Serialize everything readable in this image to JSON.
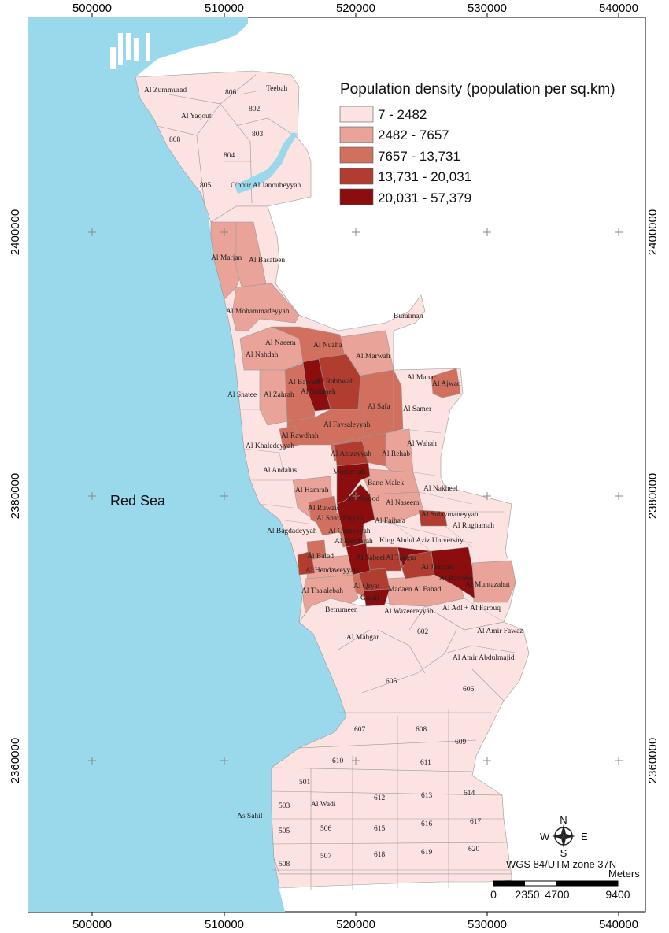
{
  "map": {
    "sea_label": "Red Sea",
    "x_ticks": [
      "500000",
      "510000",
      "520000",
      "530000",
      "540000"
    ],
    "y_ticks": [
      "2400000",
      "2380000",
      "2360000"
    ],
    "colors": {
      "sea": "#9ad8ec",
      "land": "#ffffff",
      "class1": "#fde2e2",
      "class2": "#e9a399",
      "class3": "#d1705f",
      "class4": "#b13d31",
      "class5": "#8b0d0e"
    },
    "legend": {
      "title": "Population density (population per sq.km)",
      "classes": [
        {
          "label": "7 - 2482",
          "color": "#fde2e2"
        },
        {
          "label": "2482 - 7657",
          "color": "#e9a399"
        },
        {
          "label": "7657 - 13,731",
          "color": "#d1705f"
        },
        {
          "label": "13,731 - 20,031",
          "color": "#b13d31"
        },
        {
          "label": "20,031 - 57,379",
          "color": "#8b0d0e"
        }
      ]
    },
    "neighborhoods": {
      "zummurad": "Al Zummurad",
      "n806": "806",
      "teebah": "Teebah",
      "n802": "802",
      "yaqout": "Al Yaqout",
      "n803": "803",
      "n808": "808",
      "n804": "804",
      "n805": "805",
      "obhur": "O'bhur Al Janoubeyyah",
      "marjan": "Al Marjan",
      "basateen": "Al Basateen",
      "mohammadeyyah": "Al Mohammadeyyah",
      "buraiman": "Buraiman",
      "naeem": "Al Naeem",
      "nuzha": "Al Nuzha",
      "nahdah": "Al Nahdah",
      "marwah": "Al Marwah",
      "manar": "Al Manar",
      "ajwad": "Al Ajwad",
      "bawadi": "Al Bawadi",
      "rabbwah": "Al Rabbwah",
      "salameh": "Al Salameh",
      "shatee": "Al Shatee",
      "zahrah": "Al Zahrah",
      "safa": "Al Safa",
      "samer": "Al Samer",
      "faysaleyyah": "Al Faysaleyyah",
      "rawdhah": "Al Rawdhah",
      "wahah": "Al Wahah",
      "khaledeyyah": "Al Khaledeyyah",
      "azizeyyah": "Al Azizeyyah",
      "rehab": "Al Rehab",
      "andalus": "Al Andalus",
      "mushrefah": "Mushrefah",
      "bane_malek": "Bane Malek",
      "nakheel": "Al Nakheel",
      "hamrah": "Al Hamrah",
      "worood": "Al Worood",
      "naseem": "Al Naseem",
      "ruwais": "Al Ruwais",
      "sulaymaneyyah": "Al Sulaymaneyyah",
      "sharafeyyah": "Al Sharafeyyah",
      "faihaa": "Al Faiha'a",
      "rughamah": "Al Rughamah",
      "bagdadeyyah": "Al Bagdadeyyah",
      "garbeyyah": "Al Garbeyyah",
      "kandarah": "Al Kandarah",
      "kau": "King Abdul Aziz University",
      "balad": "Al Balad",
      "sabeel": "Al Sabeel",
      "thagur": "Al Thagur",
      "hendaweyyah": "Al Hendaweyyah",
      "jamaah": "Al Jamaah",
      "rawabe": "Al Rawabe",
      "muntazahat": "Al Muntazahat",
      "thaalebah": "Al Tha'alebah",
      "qryat": "Al Qryat",
      "madaen": "Madaen Al Fahad",
      "gulail": "Gulail",
      "betrumeen": "Betrumeen",
      "wazeereyyah": "Al Wazeereyyah",
      "adl": "Al Adl + Al Farouq",
      "mahgar": "Al Mahgar",
      "n602": "602",
      "amir_fawaz": "Al Amir Fawaz",
      "amir_abdulmajid": "Al Amir Abdulmajid",
      "n605": "605",
      "n606": "606",
      "n607": "607",
      "n608": "608",
      "n609": "609",
      "n610": "610",
      "n611": "611",
      "n501": "501",
      "n614": "614",
      "n503": "503",
      "wadi": "Al Wadi",
      "n612": "612",
      "n613": "613",
      "as_sahil": "As Sahil",
      "n617": "617",
      "n505": "505",
      "n506": "506",
      "n615": "615",
      "n616": "616",
      "n508": "508",
      "n507": "507",
      "n618": "618",
      "n619": "619",
      "n620": "620"
    },
    "north_arrow": {
      "n": "N",
      "s": "S",
      "e": "E",
      "w": "W"
    },
    "projection": "WGS 84/UTM zone 37N",
    "scale_bar": {
      "unit": "Meters",
      "labels": [
        "0",
        "2350",
        "4700",
        "9400"
      ]
    }
  }
}
